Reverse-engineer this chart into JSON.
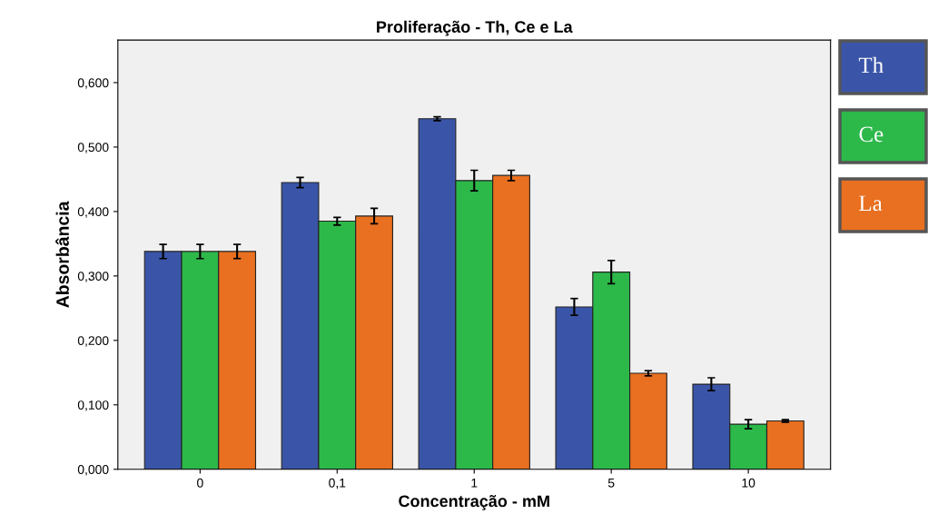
{
  "chart_data": {
    "type": "bar",
    "title": "Proliferação - Th, Ce e La",
    "xlabel": "Concentração - mM",
    "ylabel": "Absorbância",
    "categories": [
      "0",
      "0,1",
      "1",
      "5",
      "10"
    ],
    "series": [
      {
        "name": "Th",
        "color": "#3a55a8",
        "values": [
          0.338,
          0.445,
          0.544,
          0.252,
          0.132
        ],
        "errors": [
          0.011,
          0.008,
          0.003,
          0.013,
          0.01
        ]
      },
      {
        "name": "Ce",
        "color": "#2db84a",
        "values": [
          0.338,
          0.385,
          0.448,
          0.306,
          0.07
        ],
        "errors": [
          0.011,
          0.006,
          0.016,
          0.018,
          0.007
        ]
      },
      {
        "name": "La",
        "color": "#e87020",
        "values": [
          0.338,
          0.393,
          0.456,
          0.149,
          0.075
        ],
        "errors": [
          0.011,
          0.012,
          0.008,
          0.004,
          0.002
        ]
      }
    ],
    "ylim": [
      0,
      0.666
    ],
    "yticks": [
      {
        "value": 0,
        "label": "0,000"
      },
      {
        "value": 0.1,
        "label": "0,100"
      },
      {
        "value": 0.2,
        "label": "0,200"
      },
      {
        "value": 0.3,
        "label": "0,300"
      },
      {
        "value": 0.4,
        "label": "0,400"
      },
      {
        "value": 0.5,
        "label": "0,500"
      },
      {
        "value": 0.6,
        "label": "0,600"
      }
    ],
    "grid": false,
    "legend": "right"
  }
}
